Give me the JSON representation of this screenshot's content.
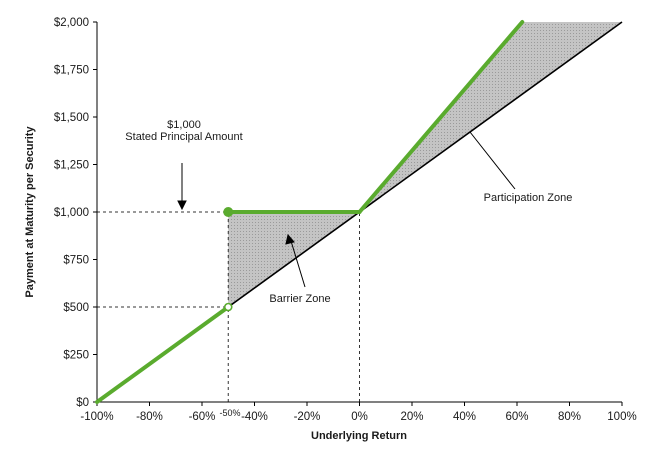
{
  "chart_data": {
    "type": "line",
    "xlabel": "Underlying Return",
    "ylabel": "Payment at Maturity per Security",
    "xlim": [
      -100,
      100
    ],
    "ylim": [
      0,
      2000
    ],
    "x_ticks": [
      -100,
      -80,
      -60,
      -40,
      -20,
      0,
      20,
      40,
      60,
      80,
      100
    ],
    "x_tick_labels": [
      "-100%",
      "-80%",
      "-60%",
      "-40%",
      "-20%",
      "0%",
      "20%",
      "40%",
      "60%",
      "80%",
      "100%"
    ],
    "y_ticks": [
      0,
      250,
      500,
      750,
      1000,
      1250,
      1500,
      1750,
      2000
    ],
    "y_tick_labels": [
      "$0",
      "$250",
      "$500",
      "$750",
      "$1,000",
      "$1,250",
      "$1,500",
      "$1,750",
      "$2,000"
    ],
    "series": [
      {
        "color": "#000000",
        "points": [
          [
            -100,
            0
          ],
          [
            100,
            2000
          ]
        ]
      },
      {
        "color": "#5aab2e",
        "segments": [
          [
            [
              -100,
              0
            ],
            [
              -50,
              500
            ]
          ],
          [
            [
              -50,
              1000
            ],
            [
              0,
              1000
            ]
          ],
          [
            [
              0,
              1000
            ],
            [
              62,
              2000
            ]
          ]
        ]
      }
    ],
    "markers": [
      {
        "x": -50,
        "y": 1000,
        "style": "filled"
      },
      {
        "x": -50,
        "y": 500,
        "style": "hollow"
      }
    ],
    "shaded_regions": [
      {
        "polygon": [
          [
            -50,
            1000
          ],
          [
            0,
            1000
          ],
          [
            -50,
            500
          ]
        ]
      },
      {
        "polygon": [
          [
            0,
            1000
          ],
          [
            62,
            2000
          ],
          [
            100,
            2000
          ]
        ]
      }
    ],
    "reference_lines": [
      {
        "from": [
          -100,
          1000
        ],
        "to": [
          -50,
          1000
        ]
      },
      {
        "from": [
          -100,
          500
        ],
        "to": [
          -50,
          500
        ]
      },
      {
        "from": [
          -50,
          0
        ],
        "to": [
          -50,
          1000
        ]
      },
      {
        "from": [
          0,
          0
        ],
        "to": [
          0,
          1000
        ]
      }
    ],
    "annotations": {
      "principal_line1": "$1,000",
      "principal_line2": "Stated Principal Amount",
      "barrier_zone": "Barrier Zone",
      "participation_zone": "Participation Zone",
      "barrier_tick": "-50%"
    },
    "colors": {
      "green": "#5aab2e",
      "shade": "#bfbfbf",
      "axis": "#000000"
    }
  }
}
